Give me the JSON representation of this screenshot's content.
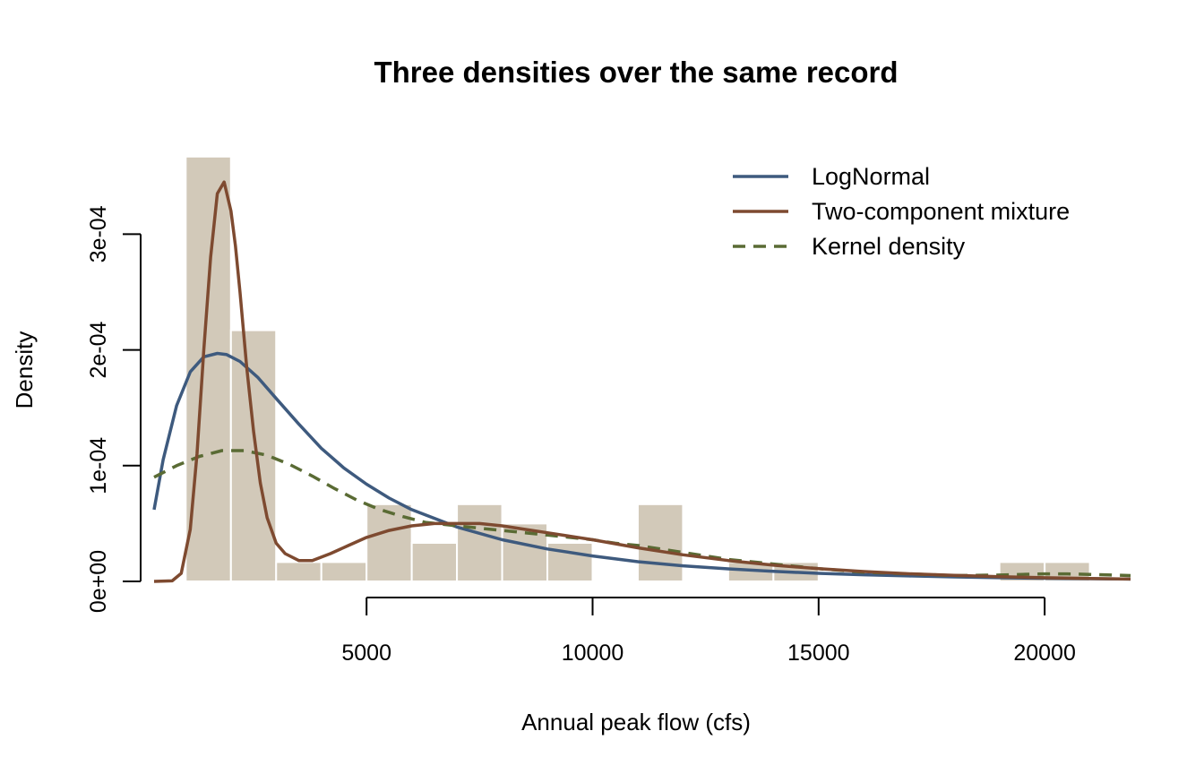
{
  "chart_data": {
    "type": "histogram",
    "title": "Three densities over the same record",
    "xlabel": "Annual peak flow (cfs)",
    "ylabel": "Density",
    "xlim": [
      300,
      21900
    ],
    "ylim": [
      0,
      0.00038
    ],
    "x_ticks": [
      {
        "value": 5000,
        "label": "5000"
      },
      {
        "value": 10000,
        "label": "10000"
      },
      {
        "value": 15000,
        "label": "15000"
      },
      {
        "value": 20000,
        "label": "20000"
      }
    ],
    "y_ticks": [
      {
        "value": 0,
        "label": "0e+00"
      },
      {
        "value": 0.0001,
        "label": "1e-04"
      },
      {
        "value": 0.0002,
        "label": "2e-04"
      },
      {
        "value": 0.0003,
        "label": "3e-04"
      }
    ],
    "histogram": {
      "color": "#d2c9b9",
      "bin_width": 1000,
      "bins": [
        {
          "start": 1000,
          "density": 0.000367
        },
        {
          "start": 2000,
          "density": 0.000217
        },
        {
          "start": 3000,
          "density": 1.67e-05
        },
        {
          "start": 4000,
          "density": 1.67e-05
        },
        {
          "start": 5000,
          "density": 6.67e-05
        },
        {
          "start": 6000,
          "density": 3.33e-05
        },
        {
          "start": 7000,
          "density": 6.67e-05
        },
        {
          "start": 8000,
          "density": 5e-05
        },
        {
          "start": 9000,
          "density": 3.33e-05
        },
        {
          "start": 10000,
          "density": 0
        },
        {
          "start": 11000,
          "density": 6.67e-05
        },
        {
          "start": 12000,
          "density": 0
        },
        {
          "start": 13000,
          "density": 1.67e-05
        },
        {
          "start": 14000,
          "density": 1.67e-05
        },
        {
          "start": 15000,
          "density": 0
        },
        {
          "start": 16000,
          "density": 0
        },
        {
          "start": 17000,
          "density": 0
        },
        {
          "start": 18000,
          "density": 0
        },
        {
          "start": 19000,
          "density": 1.67e-05
        },
        {
          "start": 20000,
          "density": 1.67e-05
        }
      ]
    },
    "series": [
      {
        "name": "LogNormal",
        "color": "#3e5a7e",
        "dash": "solid",
        "x": [
          300,
          500,
          800,
          1100,
          1400,
          1700,
          1900,
          2200,
          2600,
          3000,
          3500,
          4000,
          4500,
          5000,
          5500,
          6000,
          7000,
          8000,
          9000,
          10000,
          11000,
          12000,
          13000,
          14000,
          15000,
          16000,
          17000,
          18000,
          19000,
          20000,
          21000,
          21900
        ],
        "y": [
          6.2e-05,
          0.000105,
          0.000152,
          0.000181,
          0.000194,
          0.000197,
          0.000196,
          0.00019,
          0.000176,
          0.000158,
          0.000136,
          0.000115,
          9.8e-05,
          8.4e-05,
          7.2e-05,
          6.2e-05,
          4.7e-05,
          3.6e-05,
          2.8e-05,
          2.2e-05,
          1.7e-05,
          1.35e-05,
          1.08e-05,
          8.7e-06,
          7e-06,
          5.7e-06,
          4.7e-06,
          3.9e-06,
          3.2e-06,
          2.7e-06,
          2.3e-06,
          2e-06
        ]
      },
      {
        "name": "Two-component mixture",
        "color": "#7e4a30",
        "dash": "solid",
        "x": [
          300,
          700,
          900,
          1100,
          1250,
          1400,
          1550,
          1700,
          1850,
          2000,
          2100,
          2200,
          2350,
          2500,
          2650,
          2800,
          3000,
          3200,
          3500,
          3800,
          4200,
          4600,
          5000,
          5500,
          6000,
          6500,
          7000,
          7500,
          8000,
          8500,
          9000,
          10000,
          11000,
          12000,
          13000,
          14000,
          15000,
          16000,
          17000,
          18000,
          19000,
          20000,
          21000,
          21900
        ],
        "y": [
          0,
          5e-07,
          7e-06,
          4.5e-05,
          0.00011,
          0.0002,
          0.00028,
          0.000335,
          0.000345,
          0.00032,
          0.00029,
          0.00025,
          0.000185,
          0.00013,
          8.5e-05,
          5.5e-05,
          3.3e-05,
          2.4e-05,
          1.8e-05,
          1.8e-05,
          2.4e-05,
          3.1e-05,
          3.8e-05,
          4.4e-05,
          4.8e-05,
          5e-05,
          5e-05,
          5e-05,
          4.8e-05,
          4.5e-05,
          4.2e-05,
          3.6e-05,
          2.9e-05,
          2.3e-05,
          1.8e-05,
          1.4e-05,
          1.1e-05,
          8.5e-06,
          6.6e-06,
          5.2e-06,
          4e-06,
          3.2e-06,
          2.5e-06,
          2e-06
        ]
      },
      {
        "name": "Kernel density",
        "color": "#5a6b34",
        "dash": "dashed",
        "x": [
          300,
          800,
          1300,
          1800,
          2300,
          2800,
          3300,
          3800,
          4300,
          4800,
          5300,
          5800,
          6300,
          7000,
          7500,
          8000,
          8500,
          9000,
          9500,
          10000,
          10500,
          11000,
          11500,
          12000,
          12500,
          13000,
          13500,
          14000,
          14500,
          15000,
          16000,
          17000,
          18000,
          19000,
          19500,
          20000,
          20500,
          21000,
          21500,
          21900
        ],
        "y": [
          9e-05,
          0.0001,
          0.000108,
          0.000113,
          0.000113,
          0.000109,
          0.000101,
          9.1e-05,
          8e-05,
          7e-05,
          6.2e-05,
          5.6e-05,
          5.1e-05,
          4.8e-05,
          4.6e-05,
          4.4e-05,
          4.2e-05,
          4e-05,
          3.8e-05,
          3.6e-05,
          3.3e-05,
          3.1e-05,
          2.8e-05,
          2.5e-05,
          2.2e-05,
          1.9e-05,
          1.7e-05,
          1.5e-05,
          1.3e-05,
          1.1e-05,
          8e-06,
          6.5e-06,
          5e-06,
          5.5e-06,
          6e-06,
          6.5e-06,
          6.5e-06,
          6e-06,
          5.5e-06,
          5e-06
        ]
      }
    ],
    "legend": {
      "position": "top-right"
    }
  }
}
